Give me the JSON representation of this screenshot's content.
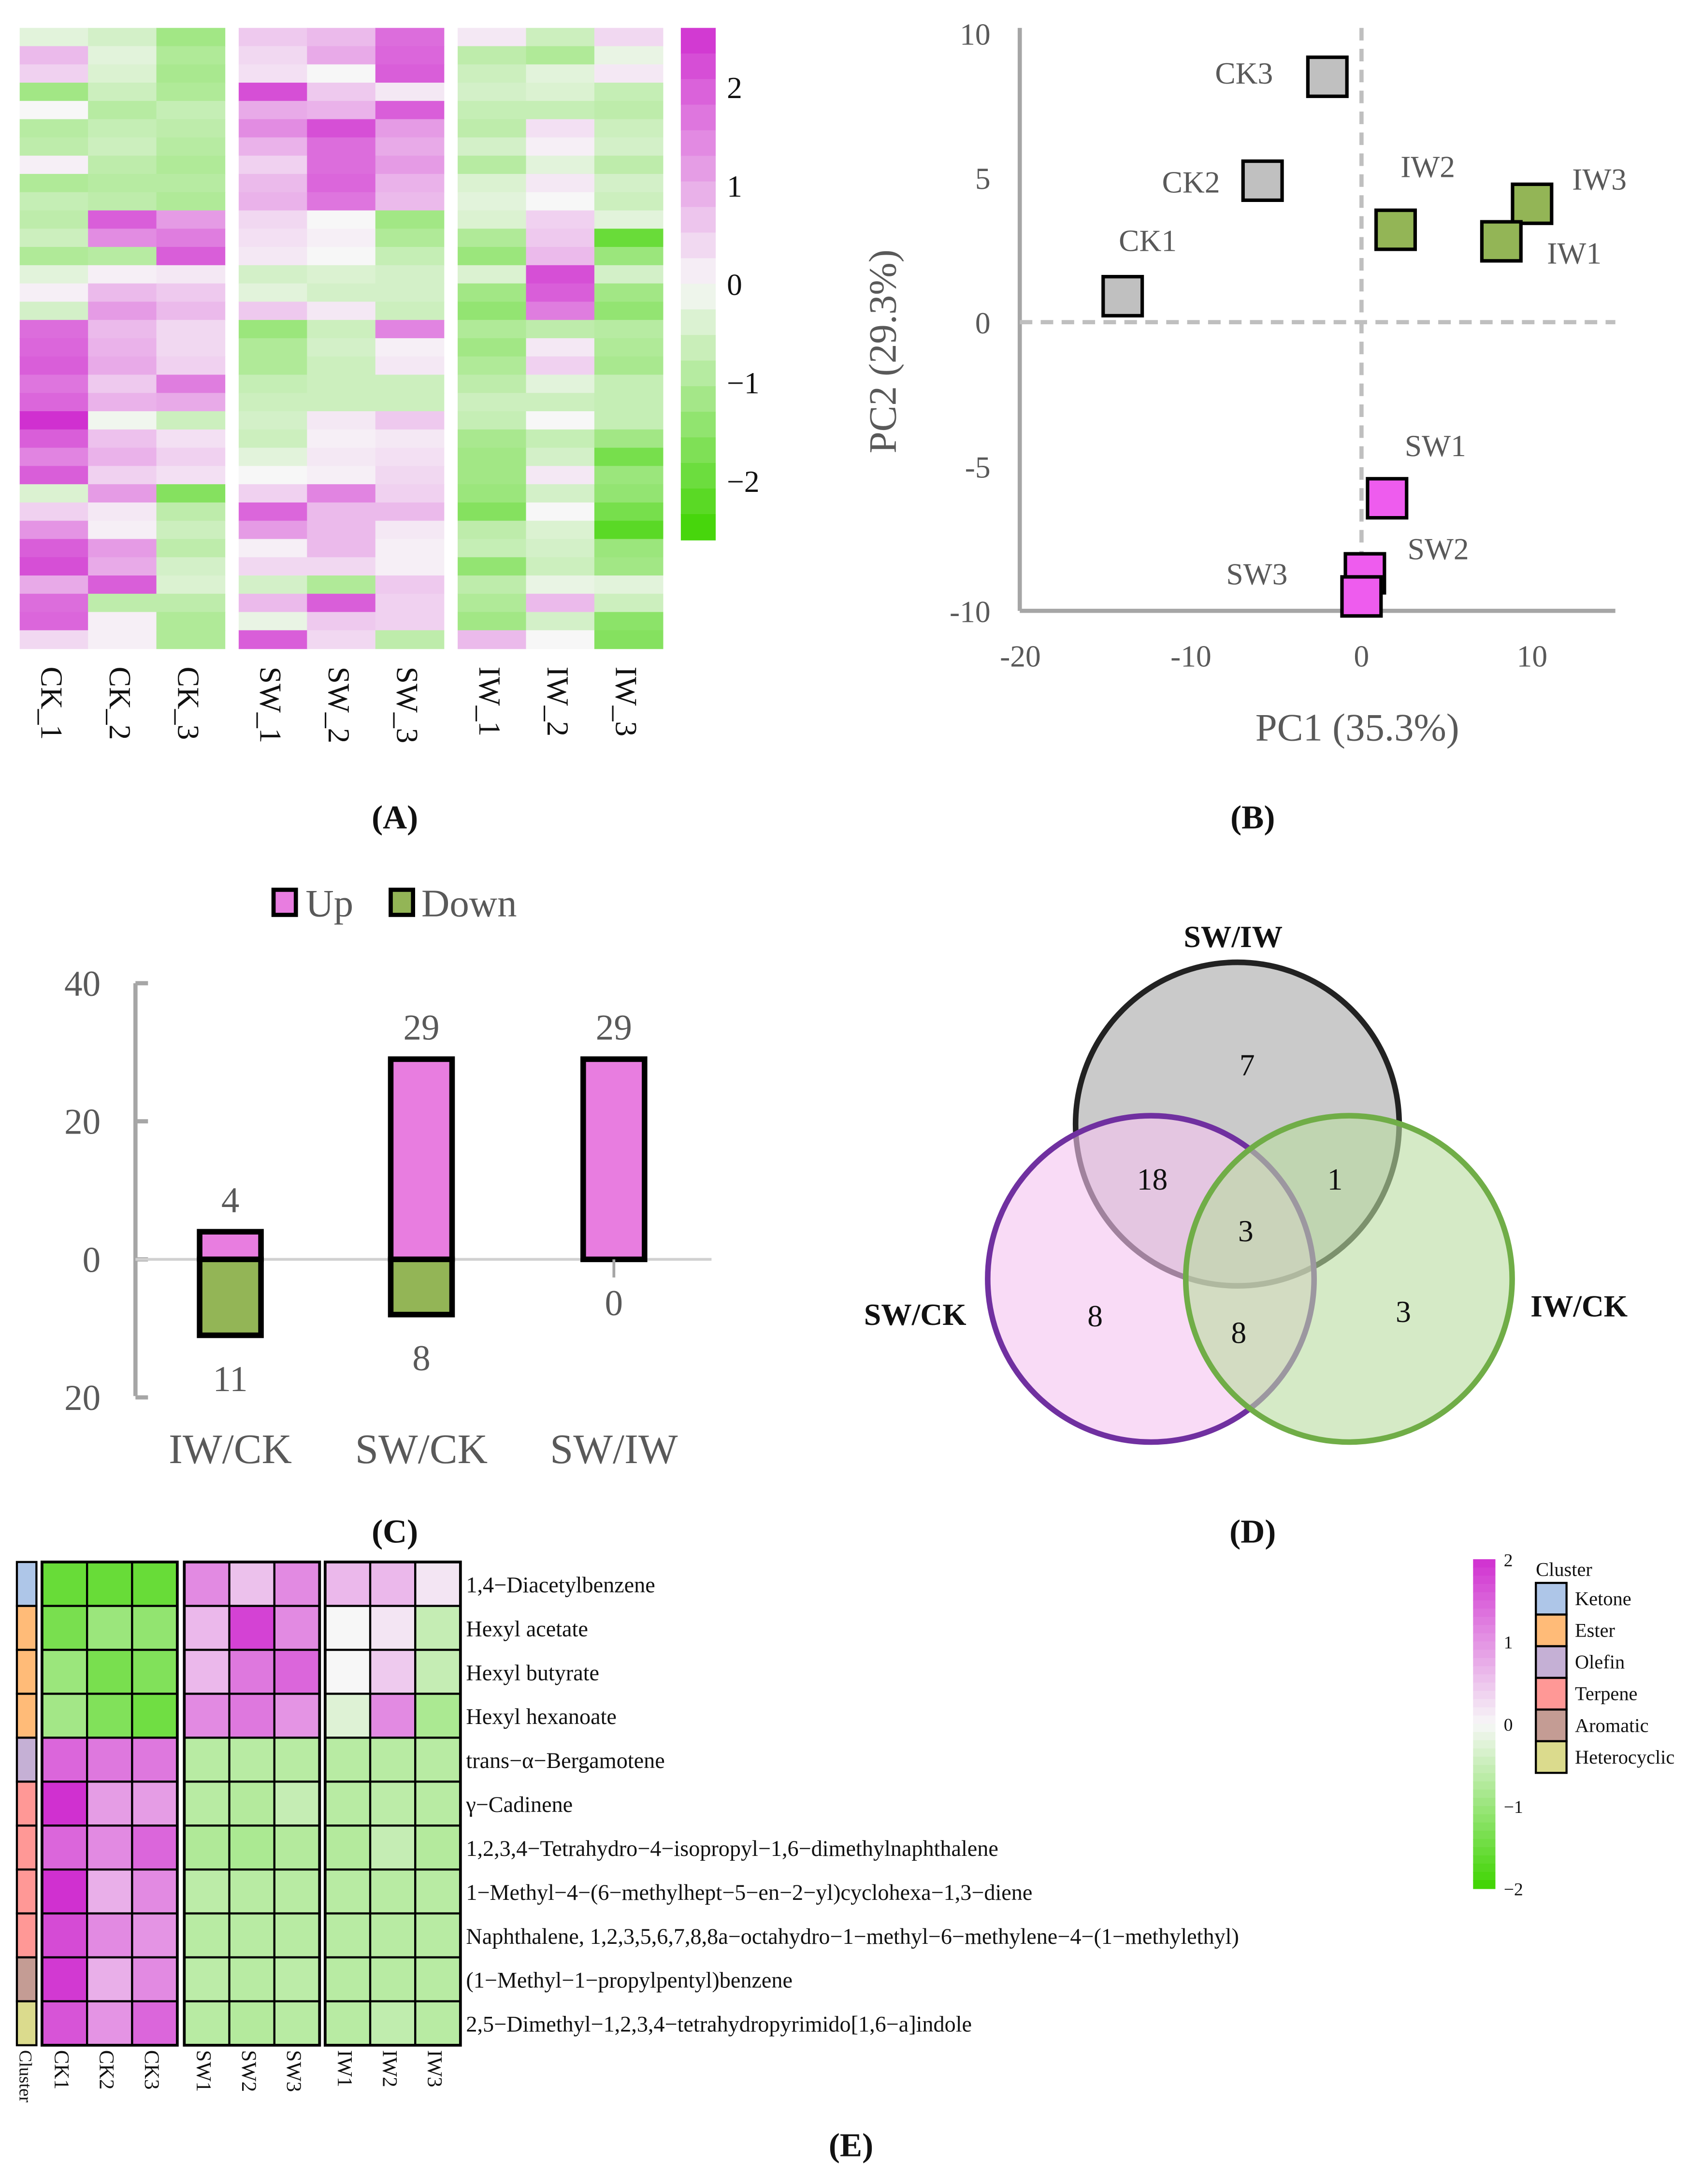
{
  "chart_data": [
    {
      "panel": "A",
      "panel_label": "(A)",
      "type": "heatmap",
      "columns": [
        "CK_1",
        "CK_2",
        "CK_3",
        "SW_1",
        "SW_2",
        "SW_3",
        "IW_1",
        "IW_2",
        "IW_3"
      ],
      "groups": [
        [
          0,
          1,
          2
        ],
        [
          3,
          4,
          5
        ],
        [
          6,
          7,
          8
        ]
      ],
      "colorbar": {
        "ticks": [
          2,
          1,
          0,
          -1,
          -2
        ],
        "tick_labels": [
          "2",
          "1",
          "0",
          "−1",
          "−2"
        ],
        "range": [
          -2.6,
          2.6
        ]
      },
      "colors": {
        "high": "#d030d0",
        "mid": "#f7f7f7",
        "low": "#3ed400"
      },
      "rows": [
        [
          -0.3,
          -0.5,
          -1.2,
          0.6,
          0.8,
          1.8,
          0.2,
          -0.6,
          0.4
        ],
        [
          0.8,
          -0.3,
          -1.0,
          0.4,
          1.0,
          1.9,
          -0.8,
          -1.0,
          -0.2
        ],
        [
          0.5,
          -0.4,
          -1.1,
          0.3,
          0.0,
          2.0,
          -0.6,
          -0.3,
          0.2
        ],
        [
          -1.2,
          -0.6,
          -1.0,
          2.2,
          0.6,
          0.2,
          -0.5,
          -0.4,
          -0.7
        ],
        [
          0.0,
          -0.9,
          -0.7,
          1.0,
          0.9,
          2.0,
          -0.7,
          -0.7,
          -0.8
        ],
        [
          -0.9,
          -0.7,
          -0.8,
          1.4,
          2.2,
          1.2,
          -0.8,
          0.3,
          -0.6
        ],
        [
          -0.8,
          -0.6,
          -0.9,
          0.9,
          1.8,
          1.0,
          -0.5,
          0.1,
          -0.5
        ],
        [
          0.1,
          -0.8,
          -1.0,
          0.5,
          1.8,
          1.2,
          -0.9,
          -0.3,
          -0.8
        ],
        [
          -1.0,
          -0.9,
          -0.9,
          0.8,
          1.9,
          0.9,
          -0.4,
          0.2,
          -0.5
        ],
        [
          -0.7,
          -0.8,
          -1.0,
          0.9,
          1.7,
          0.8,
          -0.3,
          0.0,
          -0.6
        ],
        [
          -0.8,
          2.0,
          1.2,
          0.4,
          0.0,
          -1.2,
          -0.4,
          0.5,
          -0.3
        ],
        [
          -0.6,
          1.4,
          1.6,
          0.3,
          0.1,
          -1.0,
          -1.0,
          0.6,
          -2.0
        ],
        [
          -1.0,
          -0.9,
          2.0,
          0.2,
          0.0,
          -0.7,
          -1.3,
          0.8,
          -1.3
        ],
        [
          -0.3,
          0.1,
          0.2,
          -0.5,
          -0.4,
          -0.5,
          -0.4,
          2.2,
          -0.5
        ],
        [
          0.1,
          0.8,
          0.6,
          -0.3,
          -0.5,
          -0.5,
          -1.2,
          2.0,
          -1.2
        ],
        [
          -0.5,
          1.2,
          0.8,
          0.6,
          0.2,
          -0.6,
          -1.4,
          1.6,
          -1.4
        ],
        [
          1.8,
          0.8,
          0.4,
          -1.3,
          -0.6,
          1.5,
          -1.0,
          -0.8,
          -0.9
        ],
        [
          1.9,
          0.9,
          0.4,
          -1.0,
          -0.5,
          0.1,
          -1.2,
          0.2,
          -1.0
        ],
        [
          2.0,
          1.0,
          0.5,
          -1.0,
          -0.6,
          0.2,
          -1.0,
          0.5,
          -1.1
        ],
        [
          1.7,
          0.6,
          1.6,
          -0.7,
          -0.6,
          -0.6,
          -0.8,
          -0.3,
          -0.7
        ],
        [
          1.9,
          0.9,
          1.0,
          -0.6,
          -0.6,
          -0.6,
          -0.6,
          -0.6,
          -0.7
        ],
        [
          2.6,
          -0.1,
          -0.6,
          -0.5,
          0.2,
          0.6,
          -0.7,
          0.0,
          -0.7
        ],
        [
          2.0,
          0.7,
          0.3,
          -0.6,
          0.1,
          0.2,
          -1.1,
          -0.7,
          -1.2
        ],
        [
          1.5,
          0.9,
          0.5,
          -0.3,
          0.2,
          0.3,
          -1.2,
          -0.5,
          -1.8
        ],
        [
          2.0,
          0.5,
          0.3,
          0.0,
          0.1,
          0.4,
          -1.2,
          0.2,
          -1.3
        ],
        [
          -0.4,
          1.2,
          -1.6,
          0.5,
          1.5,
          0.5,
          -1.3,
          -0.5,
          -1.4
        ],
        [
          0.5,
          0.2,
          -0.8,
          1.9,
          0.8,
          0.8,
          -1.6,
          0.0,
          -1.8
        ],
        [
          1.3,
          0.1,
          -0.6,
          1.2,
          0.8,
          0.2,
          -0.8,
          -0.4,
          -2.2
        ],
        [
          2.0,
          1.2,
          -0.8,
          0.1,
          0.8,
          0.1,
          -0.7,
          -0.5,
          -1.3
        ],
        [
          2.2,
          1.0,
          -0.5,
          0.4,
          0.4,
          0.1,
          -1.4,
          -0.6,
          -1.2
        ],
        [
          1.0,
          2.0,
          -0.4,
          -0.5,
          -1.0,
          0.6,
          -0.8,
          -0.2,
          -0.3
        ],
        [
          1.8,
          -0.8,
          -0.8,
          0.8,
          2.0,
          0.5,
          -1.0,
          0.8,
          -0.6
        ],
        [
          1.9,
          0.1,
          -1.0,
          -0.2,
          0.6,
          0.5,
          -1.2,
          -0.5,
          -1.5
        ],
        [
          0.4,
          0.1,
          -1.0,
          2.0,
          0.4,
          -0.8,
          0.8,
          0.0,
          -1.6
        ]
      ]
    },
    {
      "panel": "B",
      "panel_label": "(B)",
      "type": "scatter",
      "xlabel": "PC1 (35.3%)",
      "ylabel": "PC2 (29.3%)",
      "xlim": [
        -20,
        15
      ],
      "ylim": [
        -10,
        10
      ],
      "xticks": [
        -20,
        -10,
        0,
        10
      ],
      "xtick_labels": [
        "-20",
        "-10",
        "0",
        "10"
      ],
      "yticks": [
        10,
        5,
        0,
        -5,
        -10
      ],
      "ytick_labels": [
        "10",
        "5",
        "0",
        "-5",
        "-10"
      ],
      "group_colors": {
        "CK": "#c0c0c0",
        "IW": "#93b556",
        "SW": "#ee5cee"
      },
      "points": [
        {
          "label": "CK3",
          "group": "CK",
          "x": -2,
          "y": 8.5
        },
        {
          "label": "CK2",
          "group": "CK",
          "x": -5.8,
          "y": 4.9
        },
        {
          "label": "CK1",
          "group": "CK",
          "x": -14,
          "y": 0.9
        },
        {
          "label": "IW2",
          "group": "IW",
          "x": 2,
          "y": 3.2
        },
        {
          "label": "IW3",
          "group": "IW",
          "x": 10,
          "y": 4.1
        },
        {
          "label": "IW1",
          "group": "IW",
          "x": 8.2,
          "y": 2.8
        },
        {
          "label": "SW1",
          "group": "SW",
          "x": 1.5,
          "y": -6.1
        },
        {
          "label": "SW2",
          "group": "SW",
          "x": 0.2,
          "y": -8.7
        },
        {
          "label": "SW3",
          "group": "SW",
          "x": 0,
          "y": -9.5
        }
      ]
    },
    {
      "panel": "C",
      "panel_label": "(C)",
      "type": "bar",
      "categories": [
        "IW/CK",
        "SW/CK",
        "SW/IW"
      ],
      "series": [
        {
          "name": "Up",
          "color": "#e87de0",
          "values": [
            4,
            29,
            29
          ]
        },
        {
          "name": "Down",
          "color": "#93b556",
          "values": [
            11,
            8,
            0
          ]
        }
      ],
      "ylim": [
        -20,
        40
      ],
      "yticks": [
        40,
        20,
        0,
        -20
      ],
      "ytick_labels": [
        "40",
        "20",
        "0",
        "20"
      ]
    },
    {
      "panel": "D",
      "panel_label": "(D)",
      "type": "venn",
      "sets": [
        {
          "name": "SW/IW",
          "fill": "#a6a6a6",
          "stroke": "#222222"
        },
        {
          "name": "SW/CK",
          "fill": "#f5c3f0",
          "stroke": "#7030a0"
        },
        {
          "name": "IW/CK",
          "fill": "#b9dca0",
          "stroke": "#70ad47"
        }
      ],
      "regions": [
        {
          "sets": [
            "SW/IW"
          ],
          "count": "7"
        },
        {
          "sets": [
            "SW/IW",
            "SW/CK"
          ],
          "count": "18"
        },
        {
          "sets": [
            "SW/IW",
            "IW/CK"
          ],
          "count": "1"
        },
        {
          "sets": [
            "SW/IW",
            "SW/CK",
            "IW/CK"
          ],
          "count": "3"
        },
        {
          "sets": [
            "SW/CK"
          ],
          "count": "8"
        },
        {
          "sets": [
            "SW/CK",
            "IW/CK"
          ],
          "count": "8"
        },
        {
          "sets": [
            "IW/CK"
          ],
          "count": "3"
        }
      ]
    },
    {
      "panel": "E",
      "panel_label": "(E)",
      "type": "heatmap",
      "columns": [
        "CK1",
        "CK2",
        "CK3",
        "SW1",
        "SW2",
        "SW3",
        "IW1",
        "IW2",
        "IW3"
      ],
      "cluster_label": "Cluster",
      "colorbar": {
        "ticks": [
          2,
          1,
          0,
          -1,
          -2
        ],
        "tick_labels": [
          "2",
          "1",
          "0",
          "−1",
          "−2"
        ],
        "range": [
          -2.2,
          2.2
        ]
      },
      "cluster_legend_title": "Cluster",
      "clusters": [
        {
          "name": "Ketone",
          "color": "#aec6e8"
        },
        {
          "name": "Ester",
          "color": "#ffbb78"
        },
        {
          "name": "Olefin",
          "color": "#c5b0d5"
        },
        {
          "name": "Terpene",
          "color": "#ff9896"
        },
        {
          "name": "Aromatic",
          "color": "#c49c94"
        },
        {
          "name": "Heterocyclic",
          "color": "#dbdb8d"
        }
      ],
      "rows": [
        {
          "name": "1,4−Diacetylbenzene",
          "cluster": 0,
          "values": [
            -1.7,
            -1.7,
            -1.7,
            1.2,
            0.6,
            1.2,
            0.7,
            0.7,
            0.2
          ]
        },
        {
          "name": "Hexyl acetate",
          "cluster": 1,
          "values": [
            -1.5,
            -1.1,
            -1.2,
            0.7,
            2.0,
            1.2,
            0.0,
            0.2,
            -0.6
          ]
        },
        {
          "name": "Hexyl butyrate",
          "cluster": 1,
          "values": [
            -1.1,
            -1.5,
            -1.4,
            0.7,
            1.4,
            1.6,
            0.0,
            0.5,
            -0.6
          ]
        },
        {
          "name": "Hexyl hexanoate",
          "cluster": 1,
          "values": [
            -1.0,
            -1.4,
            -1.6,
            1.2,
            1.4,
            1.1,
            -0.3,
            1.2,
            -0.9
          ]
        },
        {
          "name": "trans−α−Bergamotene",
          "cluster": 2,
          "values": [
            1.6,
            1.4,
            1.4,
            -0.75,
            -0.75,
            -0.75,
            -0.75,
            -0.75,
            -0.75
          ]
        },
        {
          "name": "γ−Cadinene",
          "cluster": 3,
          "values": [
            2.2,
            1.0,
            1.0,
            -0.75,
            -0.8,
            -0.6,
            -0.75,
            -0.7,
            -0.75
          ]
        },
        {
          "name": "1,2,3,4−Tetrahydro−4−isopropyl−1,6−dimethylnaphthalene",
          "cluster": 3,
          "values": [
            1.6,
            1.2,
            1.6,
            -0.85,
            -0.9,
            -0.8,
            -0.8,
            -0.6,
            -0.8
          ]
        },
        {
          "name": "1−Methyl−4−(6−methylhept−5−en−2−yl)cyclohexa−1,3−diene",
          "cluster": 3,
          "values": [
            2.2,
            0.8,
            1.2,
            -0.7,
            -0.75,
            -0.75,
            -0.75,
            -0.75,
            -0.75
          ]
        },
        {
          "name": "Naphthalene, 1,2,3,5,6,7,8,8a−octahydro−1−methyl−6−methylene−4−(1−methylethyl)",
          "cluster": 3,
          "values": [
            1.9,
            1.2,
            1.1,
            -0.75,
            -0.75,
            -0.75,
            -0.75,
            -0.75,
            -0.75
          ]
        },
        {
          "name": "(1−Methyl−1−propylpentyl)benzene",
          "cluster": 4,
          "values": [
            2.1,
            0.8,
            1.2,
            -0.7,
            -0.75,
            -0.7,
            -0.75,
            -0.75,
            -0.75
          ]
        },
        {
          "name": "2,5−Dimethyl−1,2,3,4−tetrahydropyrimido[1,6−a]indole",
          "cluster": 5,
          "values": [
            1.8,
            1.1,
            1.6,
            -0.75,
            -0.8,
            -0.75,
            -0.75,
            -0.65,
            -0.75
          ]
        }
      ]
    }
  ]
}
